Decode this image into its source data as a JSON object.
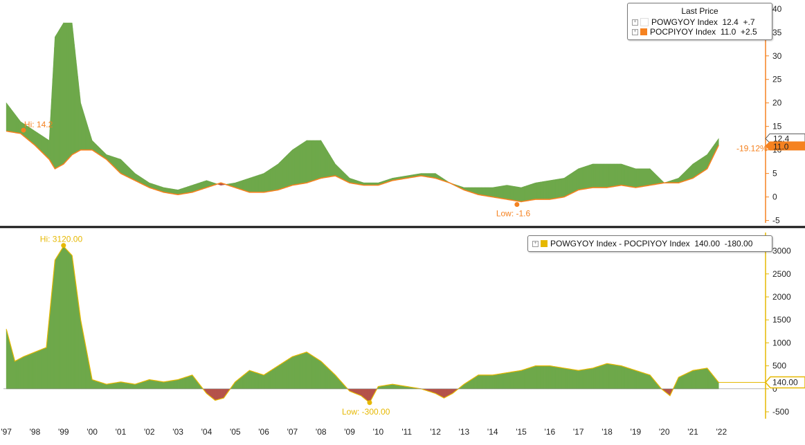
{
  "chart_data": [
    {
      "type": "area",
      "legend_title": "Last Price",
      "legend_position": "top-right",
      "series": [
        {
          "name": "POWGYOY Index",
          "last": "12.4",
          "change": "+.7",
          "color": "#ffffff"
        },
        {
          "name": "POCPIYOY Index",
          "last": "11.0",
          "change": "+2.5",
          "color": "#f58220"
        }
      ],
      "ylim": [
        -5.5,
        41
      ],
      "yticks": [
        "-5",
        "0",
        "5",
        "10",
        "15",
        "20",
        "25",
        "30",
        "35",
        "40"
      ],
      "last_value_labels": [
        "12.4",
        "11.0"
      ],
      "annotations": {
        "high": "Hi: 14.2",
        "low": "Low: -1.6",
        "diff": "-19.12%"
      },
      "x": [
        1997.0,
        1997.5,
        1998.0,
        1998.5,
        1998.7,
        1999.0,
        1999.3,
        1999.6,
        2000.0,
        2000.5,
        2001.0,
        2001.5,
        2002.0,
        2002.5,
        2003.0,
        2003.5,
        2004.0,
        2004.5,
        2005.0,
        2005.5,
        2006.0,
        2006.5,
        2007.0,
        2007.5,
        2008.0,
        2008.5,
        2009.0,
        2009.5,
        2010.0,
        2010.5,
        2011.0,
        2011.5,
        2012.0,
        2012.5,
        2013.0,
        2013.5,
        2014.0,
        2014.5,
        2015.0,
        2015.5,
        2016.0,
        2016.5,
        2017.0,
        2017.5,
        2018.0,
        2018.5,
        2019.0,
        2019.5,
        2020.0,
        2020.5,
        2021.0,
        2021.5,
        2021.9
      ],
      "wages": [
        20,
        16,
        14,
        12,
        34,
        37,
        37,
        20,
        12,
        9,
        8,
        5,
        3,
        2,
        1.5,
        2.5,
        3.5,
        2.5,
        3,
        4,
        5,
        7,
        10,
        12,
        12,
        7,
        4,
        3,
        3,
        4,
        4.5,
        5,
        5,
        3,
        2,
        2,
        2,
        2.5,
        2,
        3,
        3.5,
        4,
        6,
        7,
        7,
        7,
        6,
        6,
        3,
        4,
        7,
        9,
        12.4
      ],
      "cpi": [
        14,
        13.5,
        11,
        8,
        6,
        7,
        9,
        10,
        10,
        8,
        5,
        3.5,
        2,
        1,
        0.5,
        1,
        2,
        3,
        2,
        1,
        1,
        1.5,
        2.5,
        3,
        4,
        4.5,
        3,
        2.5,
        2.5,
        3.5,
        4,
        4.5,
        4,
        3,
        1.5,
        0.5,
        0,
        -0.5,
        -1,
        -0.5,
        -0.5,
        0,
        1.5,
        2,
        2,
        2.5,
        2,
        2.5,
        3,
        3,
        4,
        6,
        11.0
      ]
    },
    {
      "type": "area",
      "legend_position": "top-right",
      "series": [
        {
          "name": "POWGYOY Index - POCPIYOY Index",
          "last": "140.00",
          "change": "-180.00",
          "color": "#e6b800"
        }
      ],
      "ylim": [
        -650,
        3400
      ],
      "yticks": [
        "-500",
        "0",
        "500",
        "1000",
        "1500",
        "2000",
        "2500",
        "3000"
      ],
      "last_value_labels": [
        "140.00"
      ],
      "annotations": {
        "high": "Hi: 3120.00",
        "low": "Low: -300.00"
      },
      "x": [
        1997.0,
        1997.3,
        1997.6,
        1998.0,
        1998.4,
        1998.7,
        1999.0,
        1999.3,
        1999.6,
        2000.0,
        2000.5,
        2001.0,
        2001.5,
        2002.0,
        2002.5,
        2003.0,
        2003.5,
        2004.0,
        2004.3,
        2004.6,
        2005.0,
        2005.5,
        2006.0,
        2006.5,
        2007.0,
        2007.5,
        2008.0,
        2008.5,
        2009.0,
        2009.4,
        2009.7,
        2010.0,
        2010.5,
        2011.0,
        2011.5,
        2012.0,
        2012.3,
        2012.6,
        2013.0,
        2013.5,
        2014.0,
        2014.5,
        2015.0,
        2015.5,
        2016.0,
        2016.5,
        2017.0,
        2017.5,
        2018.0,
        2018.5,
        2019.0,
        2019.5,
        2019.9,
        2020.2,
        2020.5,
        2021.0,
        2021.5,
        2021.9
      ],
      "values": [
        1300,
        600,
        700,
        800,
        900,
        2800,
        3100,
        2900,
        1500,
        200,
        100,
        150,
        100,
        200,
        150,
        200,
        300,
        -100,
        -250,
        -200,
        150,
        400,
        300,
        500,
        700,
        800,
        600,
        300,
        -50,
        -150,
        -300,
        50,
        100,
        50,
        0,
        -100,
        -200,
        -100,
        100,
        300,
        300,
        350,
        400,
        500,
        500,
        450,
        400,
        450,
        550,
        500,
        400,
        300,
        0,
        -150,
        250,
        400,
        450,
        140
      ]
    }
  ],
  "x_axis": {
    "ticks": [
      "'97",
      "'98",
      "'99",
      "'00",
      "'01",
      "'02",
      "'03",
      "'04",
      "'05",
      "'06",
      "'07",
      "'08",
      "'09",
      "'10",
      "'11",
      "'12",
      "'13",
      "'14",
      "'15",
      "'16",
      "'17",
      "'18",
      "'19",
      "'20",
      "'21",
      "'22"
    ],
    "range": [
      1996.9,
      2022.5
    ]
  },
  "colors": {
    "green": "#6ea84a",
    "red": "#b5534a",
    "orange": "#f58220",
    "gold": "#e6b800"
  }
}
